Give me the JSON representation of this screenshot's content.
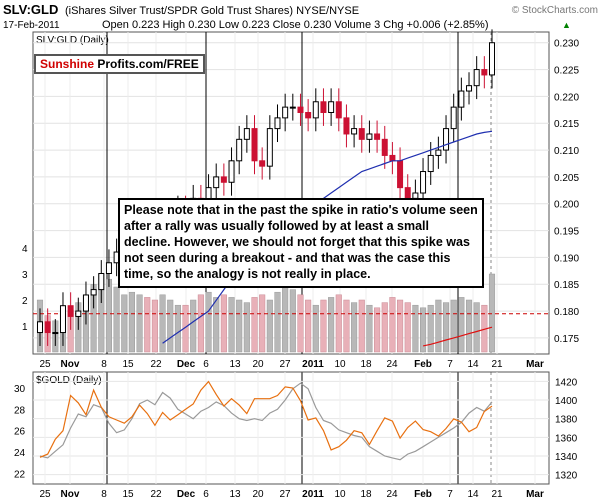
{
  "header": {
    "symbol": "SLV:GLD",
    "description": "(iShares Silver Trust/SPDR Gold Trust Shares) NYSE/NYSE",
    "copyright": "© StockCharts.com",
    "date": "17-Feb-2011",
    "ohlc": "Open 0.223  High 0.230  Low 0.223  Close 0.230  Volume 3  Chg +0.006 (+2.85%)",
    "change_arrow": "▲"
  },
  "main_panel": {
    "label": "SLV:GLD (Daily)"
  },
  "logo": {
    "part1": "Sunshine",
    "part2": "Profits.com/FREE"
  },
  "note": {
    "text": "Please note that in the past the spike in ratio's volume seen after a rally was usually followed by at least a small decline. However, we should not forget that this spike was not seen during a breakout - and that was the case this time, so the analogy is not really in place."
  },
  "lower_panel": {
    "label": "$GOLD (Daily)"
  },
  "x_labels": [
    "25",
    "Nov",
    "8",
    "15",
    "22",
    "Dec",
    "6",
    "13",
    "20",
    "27",
    "2011",
    "10",
    "18",
    "24",
    "Feb",
    "7",
    "14",
    "21",
    "Mar"
  ],
  "colors": {
    "up_candle": "#000000",
    "down_candle": "#cc1133",
    "volume_up": "#b8b8b8",
    "volume_down": "#e8b0b8",
    "ma_blue": "#1f2fb0",
    "ma_red": "#e01010",
    "ratio_line": "#e87010",
    "gold_line": "#9a9a9a",
    "dashed_level": "#cc0000"
  },
  "chart_data": [
    {
      "type": "candlestick",
      "title": "SLV:GLD (Daily)",
      "ylim": [
        0.172,
        0.232
      ],
      "y_ticks": [
        0.175,
        0.18,
        0.185,
        0.19,
        0.195,
        0.2,
        0.205,
        0.21,
        0.215,
        0.22,
        0.225,
        0.23
      ],
      "volume_ticks": [
        1,
        2,
        3,
        4
      ],
      "dashed_level": 0.1795,
      "x_labels": [
        "25",
        "Nov",
        "8",
        "15",
        "22",
        "Dec",
        "6",
        "13",
        "20",
        "27",
        "2011",
        "10",
        "18",
        "24",
        "Feb",
        "7",
        "14",
        "21",
        "Mar"
      ],
      "close": [
        0.178,
        0.176,
        0.176,
        0.181,
        0.179,
        0.18,
        0.183,
        0.184,
        0.187,
        0.189,
        0.191,
        0.193,
        0.196,
        0.197,
        0.191,
        0.188,
        0.195,
        0.196,
        0.199,
        0.198,
        0.201,
        0.2,
        0.203,
        0.205,
        0.204,
        0.208,
        0.212,
        0.214,
        0.208,
        0.207,
        0.214,
        0.216,
        0.218,
        0.218,
        0.217,
        0.216,
        0.219,
        0.217,
        0.219,
        0.216,
        0.213,
        0.214,
        0.212,
        0.213,
        0.212,
        0.209,
        0.208,
        0.203,
        0.201,
        0.202,
        0.206,
        0.209,
        0.21,
        0.214,
        0.218,
        0.221,
        0.222,
        0.225,
        0.224,
        0.23
      ],
      "volume": [
        2.0,
        1.4,
        1.2,
        1.5,
        1.6,
        1.9,
        2.2,
        2.6,
        3.0,
        2.8,
        2.5,
        2.2,
        2.3,
        2.2,
        2.1,
        2.0,
        2.2,
        2.0,
        1.8,
        1.8,
        2.0,
        2.2,
        2.3,
        2.1,
        2.2,
        2.1,
        2.0,
        1.9,
        2.1,
        2.2,
        2.0,
        2.3,
        2.6,
        2.4,
        2.2,
        2.0,
        1.8,
        2.0,
        2.1,
        2.2,
        2.0,
        1.9,
        2.0,
        1.8,
        1.7,
        1.9,
        2.1,
        2.0,
        1.9,
        1.8,
        1.7,
        1.8,
        2.0,
        1.9,
        2.0,
        2.1,
        2.0,
        1.9,
        1.8,
        3.0
      ],
      "ma_long": [
        null,
        null,
        null,
        null,
        null,
        null,
        null,
        null,
        null,
        null,
        null,
        null,
        null,
        null,
        null,
        null,
        0.174,
        0.175,
        0.176,
        0.177,
        0.178,
        0.179,
        0.18,
        0.182,
        0.184,
        0.186,
        0.188,
        0.19,
        0.192,
        0.193,
        0.194,
        0.195,
        0.196,
        0.197,
        0.198,
        0.199,
        0.2,
        0.201,
        0.202,
        0.203,
        0.204,
        0.205,
        0.206,
        0.2065,
        0.207,
        0.2075,
        0.208,
        0.208,
        0.2085,
        0.209,
        0.2095,
        0.21,
        0.2105,
        0.211,
        0.2115,
        0.212,
        0.2125,
        0.213,
        0.2133,
        0.2135
      ],
      "ma_red": [
        null,
        null,
        null,
        null,
        null,
        null,
        null,
        null,
        null,
        null,
        null,
        null,
        null,
        null,
        null,
        null,
        null,
        null,
        null,
        null,
        null,
        null,
        null,
        null,
        null,
        null,
        null,
        null,
        null,
        null,
        null,
        null,
        null,
        null,
        null,
        null,
        null,
        null,
        null,
        null,
        null,
        null,
        null,
        null,
        null,
        null,
        null,
        null,
        null,
        null,
        0.1735,
        0.1738,
        0.1742,
        0.1746,
        0.175,
        0.1754,
        0.1758,
        0.1762,
        0.1766,
        0.177
      ]
    },
    {
      "type": "line",
      "title": "$GOLD (Daily)",
      "left_ticks": [
        22,
        24,
        26,
        28,
        30
      ],
      "right_ticks": [
        1320,
        1340,
        1360,
        1380,
        1400,
        1420
      ],
      "series": [
        {
          "name": "SLV:GLD",
          "axis": "left",
          "values": [
            23.5,
            23.8,
            25.2,
            26.0,
            29.3,
            28.6,
            27.5,
            29.8,
            28.2,
            27.3,
            27.0,
            26.7,
            27.3,
            28.4,
            27.6,
            26.5,
            27.7,
            27.0,
            27.5,
            28.0,
            28.5,
            29.8,
            30.6,
            29.4,
            28.3,
            29.0,
            28.4,
            27.6,
            29.0,
            29.0,
            29.0,
            29.3,
            30.1,
            30.0,
            28.8,
            27.0,
            27.2,
            26.0,
            24.2,
            24.5,
            25.1,
            26.0,
            25.8,
            24.7,
            26.0,
            27.2,
            26.9,
            25.3,
            26.3,
            26.9,
            26.1,
            25.9,
            25.5,
            26.2,
            27.1,
            26.8,
            25.9,
            26.3,
            27.8,
            28.3
          ]
        },
        {
          "name": "$GOLD",
          "axis": "right",
          "values": [
            1340,
            1338,
            1345,
            1352,
            1370,
            1385,
            1382,
            1395,
            1392,
            1375,
            1365,
            1368,
            1380,
            1396,
            1400,
            1395,
            1408,
            1402,
            1390,
            1385,
            1380,
            1388,
            1392,
            1398,
            1394,
            1386,
            1380,
            1378,
            1380,
            1378,
            1386,
            1390,
            1400,
            1412,
            1418,
            1412,
            1392,
            1378,
            1375,
            1368,
            1365,
            1362,
            1360,
            1350,
            1345,
            1340,
            1338,
            1336,
            1342,
            1345,
            1350,
            1355,
            1360,
            1365,
            1370,
            1376,
            1386,
            1392,
            1388,
            1398
          ]
        }
      ]
    }
  ]
}
